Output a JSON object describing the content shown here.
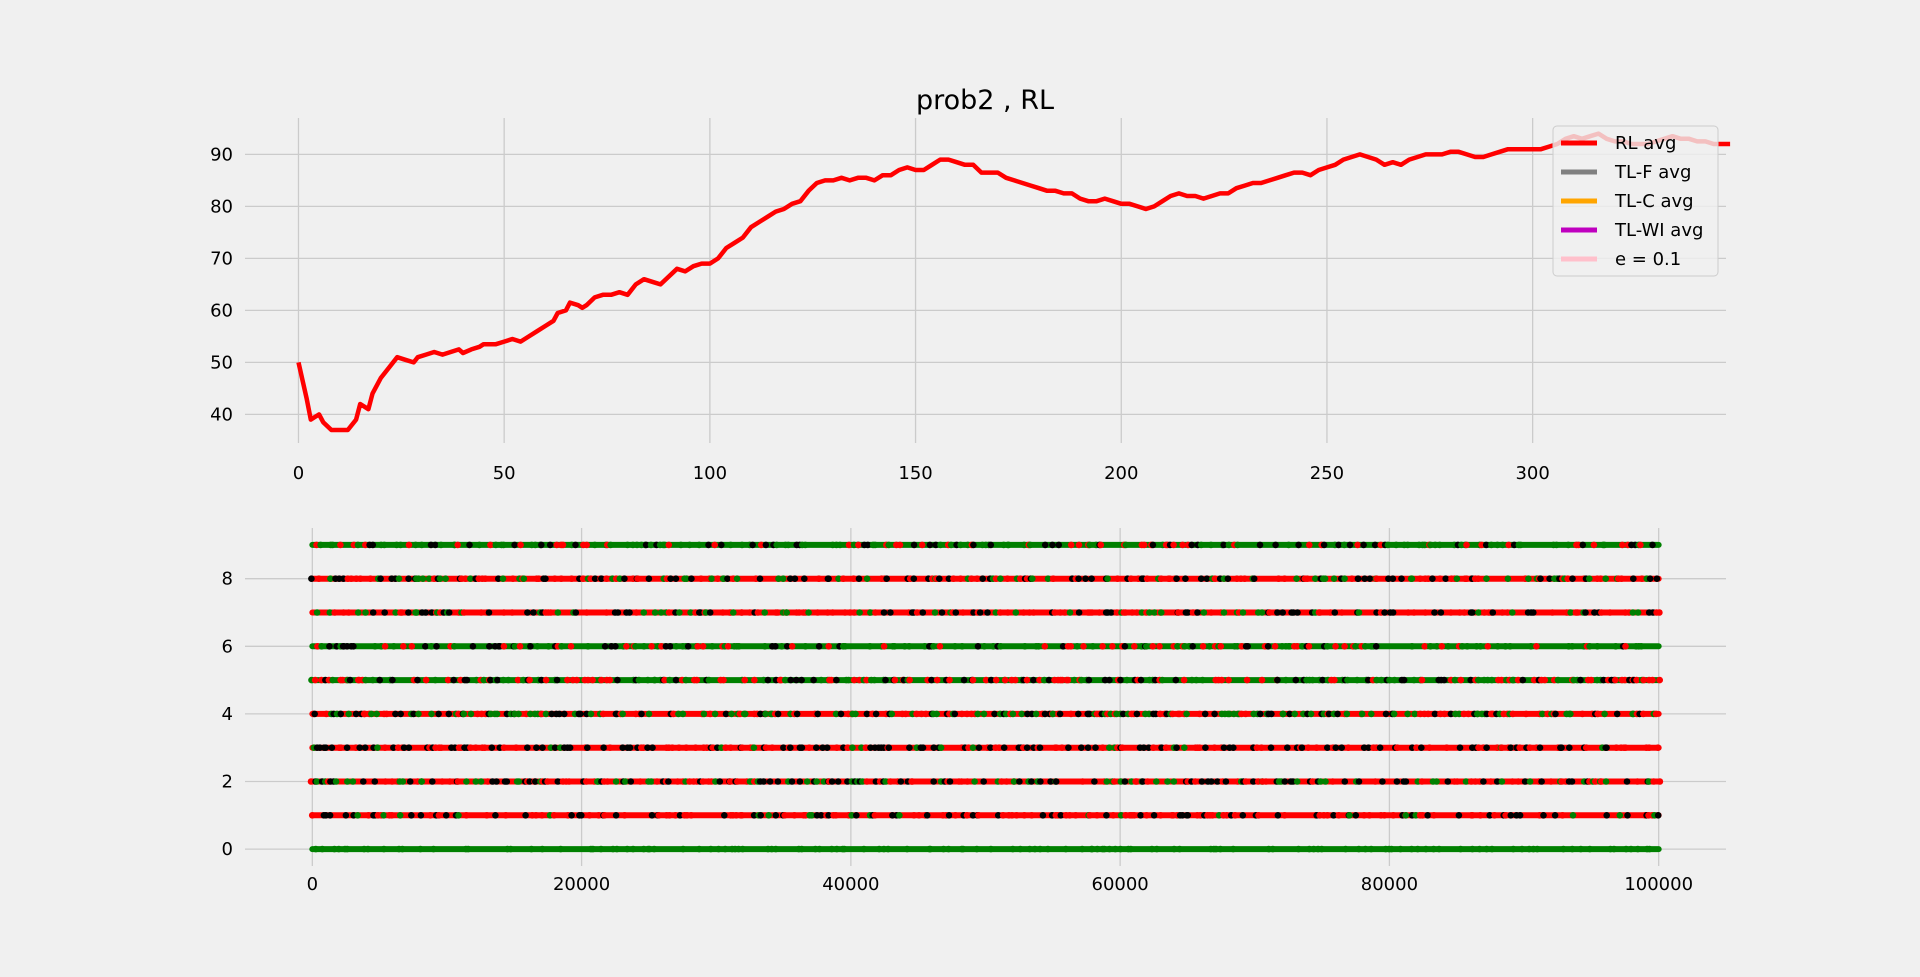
{
  "chart_data": [
    {
      "type": "line",
      "title": "prob2 , RL",
      "xlabel": "",
      "ylabel": "",
      "xlim": [
        -13,
        347
      ],
      "ylim": [
        34.5,
        97
      ],
      "xticks": [
        0,
        50,
        100,
        150,
        200,
        250,
        300
      ],
      "yticks": [
        40,
        50,
        60,
        70,
        80,
        90
      ],
      "grid": true,
      "legend_position": "top-right",
      "legend": [
        {
          "label": "RL avg",
          "color": "#ff0000"
        },
        {
          "label": "TL-F avg",
          "color": "#808080"
        },
        {
          "label": "TL-C avg",
          "color": "#ffa500"
        },
        {
          "label": "TL-WI avg",
          "color": "#bf00bf"
        },
        {
          "label": "e = 0.1",
          "color": "#ffc0cb"
        }
      ],
      "series": [
        {
          "name": "RL avg",
          "color": "#ff0000",
          "points": [
            [
              0,
              50
            ],
            [
              2,
              43
            ],
            [
              3,
              39
            ],
            [
              4,
              39.5
            ],
            [
              5,
              40
            ],
            [
              6,
              38.5
            ],
            [
              8,
              37
            ],
            [
              10,
              37
            ],
            [
              12,
              37
            ],
            [
              14,
              39
            ],
            [
              15,
              42
            ],
            [
              17,
              41
            ],
            [
              18,
              44
            ],
            [
              20,
              47
            ],
            [
              22,
              49
            ],
            [
              24,
              51
            ],
            [
              26,
              50.5
            ],
            [
              28,
              50
            ],
            [
              29,
              51
            ],
            [
              31,
              51.5
            ],
            [
              33,
              52
            ],
            [
              35,
              51.5
            ],
            [
              37,
              52
            ],
            [
              39,
              52.5
            ],
            [
              40,
              51.8
            ],
            [
              42,
              52.5
            ],
            [
              44,
              53
            ],
            [
              45,
              53.5
            ],
            [
              48,
              53.5
            ],
            [
              50,
              54
            ],
            [
              52,
              54.5
            ],
            [
              54,
              54
            ],
            [
              56,
              55
            ],
            [
              58,
              56
            ],
            [
              60,
              57
            ],
            [
              62,
              58
            ],
            [
              63,
              59.5
            ],
            [
              65,
              60
            ],
            [
              66,
              61.5
            ],
            [
              68,
              61
            ],
            [
              69,
              60.5
            ],
            [
              70,
              61
            ],
            [
              72,
              62.5
            ],
            [
              74,
              63
            ],
            [
              76,
              63
            ],
            [
              78,
              63.5
            ],
            [
              80,
              63
            ],
            [
              82,
              65
            ],
            [
              84,
              66
            ],
            [
              86,
              65.5
            ],
            [
              88,
              65
            ],
            [
              90,
              66.5
            ],
            [
              92,
              68
            ],
            [
              94,
              67.5
            ],
            [
              96,
              68.5
            ],
            [
              98,
              69
            ],
            [
              100,
              69
            ],
            [
              102,
              70
            ],
            [
              104,
              72
            ],
            [
              106,
              73
            ],
            [
              108,
              74
            ],
            [
              110,
              76
            ],
            [
              112,
              77
            ],
            [
              114,
              78
            ],
            [
              116,
              79
            ],
            [
              118,
              79.5
            ],
            [
              120,
              80.5
            ],
            [
              122,
              81
            ],
            [
              124,
              83
            ],
            [
              126,
              84.5
            ],
            [
              128,
              85
            ],
            [
              130,
              85
            ],
            [
              132,
              85.5
            ],
            [
              134,
              85
            ],
            [
              136,
              85.5
            ],
            [
              138,
              85.5
            ],
            [
              140,
              85
            ],
            [
              142,
              86
            ],
            [
              144,
              86
            ],
            [
              146,
              87
            ],
            [
              148,
              87.5
            ],
            [
              150,
              87
            ],
            [
              152,
              87
            ],
            [
              154,
              88
            ],
            [
              156,
              89
            ],
            [
              158,
              89
            ],
            [
              160,
              88.5
            ],
            [
              162,
              88
            ],
            [
              164,
              88
            ],
            [
              166,
              86.5
            ],
            [
              168,
              86.5
            ],
            [
              170,
              86.5
            ],
            [
              172,
              85.5
            ],
            [
              174,
              85
            ],
            [
              176,
              84.5
            ],
            [
              178,
              84
            ],
            [
              180,
              83.5
            ],
            [
              182,
              83
            ],
            [
              184,
              83
            ],
            [
              186,
              82.5
            ],
            [
              188,
              82.5
            ],
            [
              190,
              81.5
            ],
            [
              192,
              81
            ],
            [
              194,
              81
            ],
            [
              196,
              81.5
            ],
            [
              198,
              81
            ],
            [
              200,
              80.5
            ],
            [
              202,
              80.5
            ],
            [
              204,
              80
            ],
            [
              206,
              79.5
            ],
            [
              208,
              80
            ],
            [
              210,
              81
            ],
            [
              212,
              82
            ],
            [
              214,
              82.5
            ],
            [
              216,
              82
            ],
            [
              218,
              82
            ],
            [
              220,
              81.5
            ],
            [
              222,
              82
            ],
            [
              224,
              82.5
            ],
            [
              226,
              82.5
            ],
            [
              228,
              83.5
            ],
            [
              230,
              84
            ],
            [
              232,
              84.5
            ],
            [
              234,
              84.5
            ],
            [
              236,
              85
            ],
            [
              238,
              85.5
            ],
            [
              240,
              86
            ],
            [
              242,
              86.5
            ],
            [
              244,
              86.5
            ],
            [
              246,
              86
            ],
            [
              248,
              87
            ],
            [
              250,
              87.5
            ],
            [
              252,
              88
            ],
            [
              254,
              89
            ],
            [
              256,
              89.5
            ],
            [
              258,
              90
            ],
            [
              260,
              89.5
            ],
            [
              262,
              89
            ],
            [
              264,
              88
            ],
            [
              266,
              88.5
            ],
            [
              268,
              88
            ],
            [
              270,
              89
            ],
            [
              272,
              89.5
            ],
            [
              274,
              90
            ],
            [
              276,
              90
            ],
            [
              278,
              90
            ],
            [
              280,
              90.5
            ],
            [
              282,
              90.5
            ],
            [
              284,
              90
            ],
            [
              286,
              89.5
            ],
            [
              288,
              89.5
            ],
            [
              290,
              90
            ],
            [
              292,
              90.5
            ],
            [
              294,
              91
            ],
            [
              296,
              91
            ],
            [
              298,
              91
            ],
            [
              300,
              91
            ],
            [
              302,
              91
            ],
            [
              304,
              91.5
            ],
            [
              306,
              92
            ],
            [
              308,
              93
            ],
            [
              310,
              93.5
            ],
            [
              312,
              93
            ],
            [
              314,
              93.5
            ],
            [
              316,
              94
            ],
            [
              318,
              93
            ],
            [
              320,
              92.5
            ],
            [
              322,
              92.5
            ],
            [
              324,
              92
            ],
            [
              326,
              92
            ],
            [
              328,
              92
            ],
            [
              330,
              92.5
            ],
            [
              332,
              93
            ],
            [
              334,
              93.5
            ],
            [
              336,
              93
            ],
            [
              338,
              93
            ],
            [
              340,
              92.5
            ],
            [
              342,
              92.5
            ],
            [
              344,
              92
            ],
            [
              346,
              92
            ],
            [
              348,
              92
            ]
          ]
        }
      ]
    },
    {
      "type": "scatter",
      "title": "",
      "xlabel": "",
      "ylabel": "",
      "xlim": [
        -5000,
        105000
      ],
      "ylim": [
        -0.5,
        9.5
      ],
      "xticks": [
        0,
        20000,
        40000,
        60000,
        80000,
        100000
      ],
      "yticks": [
        0,
        2,
        4,
        6,
        8
      ],
      "grid": true,
      "marker_colors": {
        "red": "#ff0000",
        "green": "#008000",
        "black": "#000000"
      },
      "rows": [
        {
          "y": 0,
          "mix": [
            0.0,
            1.0,
            0.0
          ]
        },
        {
          "y": 1,
          "mix": [
            0.78,
            0.05,
            0.17
          ]
        },
        {
          "y": 2,
          "mix": [
            0.7,
            0.15,
            0.15
          ]
        },
        {
          "y": 3,
          "mix": [
            0.72,
            0.05,
            0.23
          ]
        },
        {
          "y": 4,
          "mix": [
            0.6,
            0.25,
            0.15
          ]
        },
        {
          "y": 5,
          "mix": [
            0.22,
            0.68,
            0.1
          ]
        },
        {
          "y": 6,
          "mix": [
            0.12,
            0.8,
            0.08
          ]
        },
        {
          "y": 7,
          "mix": [
            0.75,
            0.1,
            0.15
          ]
        },
        {
          "y": 8,
          "mix": [
            0.72,
            0.13,
            0.15
          ]
        },
        {
          "y": 9,
          "mix": [
            0.14,
            0.73,
            0.13
          ]
        }
      ],
      "x_range": [
        0,
        100000
      ]
    }
  ]
}
